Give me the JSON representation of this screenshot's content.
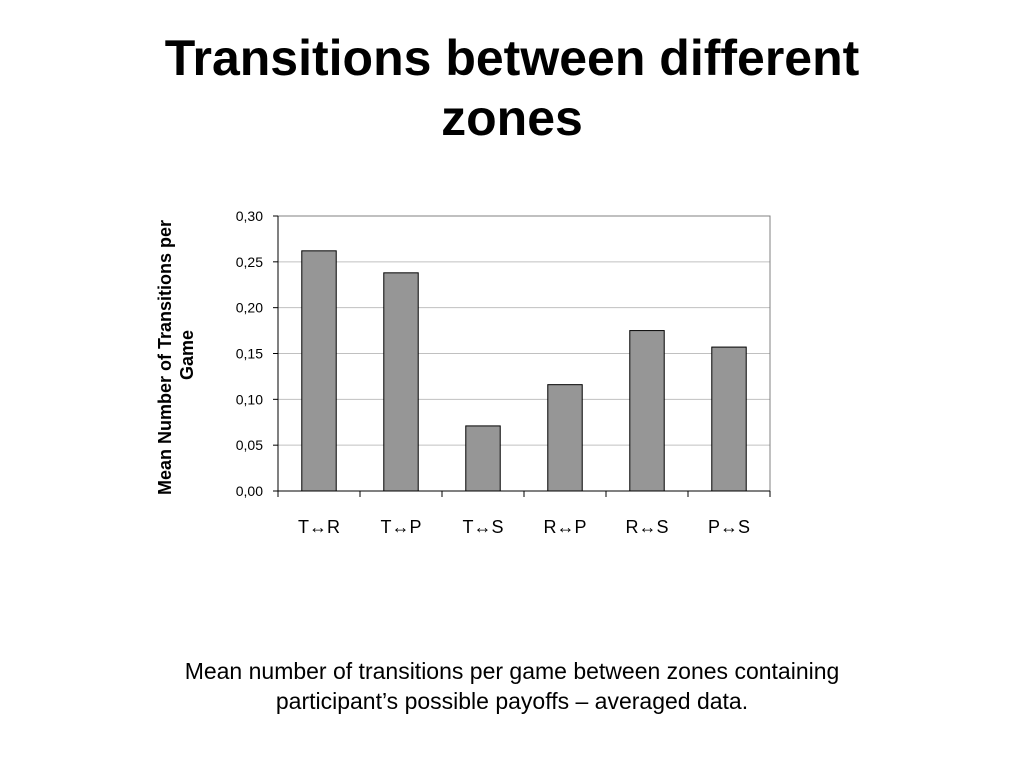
{
  "slide": {
    "title_line1": "Transitions between different",
    "title_line2": "zones",
    "caption_line1": "Mean number of transitions per game between zones containing",
    "caption_line2": "participant’s possible payoffs – averaged data."
  },
  "chart_data": {
    "type": "bar",
    "categories": [
      "T↔R",
      "T↔P",
      "T↔S",
      "R↔P",
      "R↔S",
      "P↔S"
    ],
    "values": [
      0.262,
      0.238,
      0.071,
      0.116,
      0.175,
      0.157
    ],
    "ylabel_line1": "Mean Number of Transitions per",
    "ylabel_line2": "Game",
    "xlabel": "",
    "ylim": [
      0,
      0.3
    ],
    "yticks": [
      "0,00",
      "0,05",
      "0,10",
      "0,15",
      "0,20",
      "0,25",
      "0,30"
    ],
    "grid": true,
    "legend": "none",
    "bar_color": "#969696",
    "gridline_color": "#c0c0c0"
  }
}
